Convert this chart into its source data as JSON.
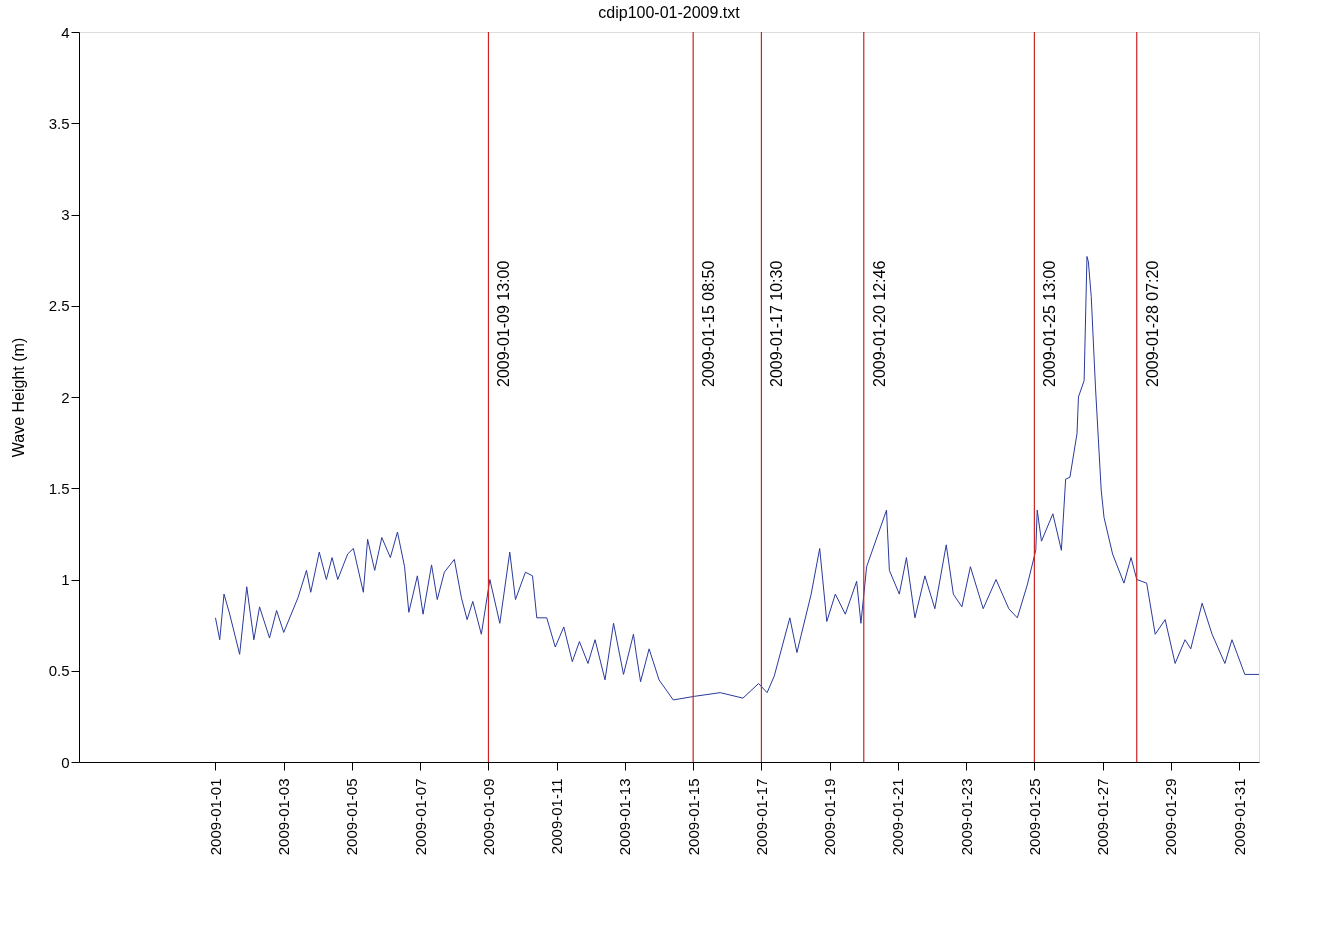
{
  "chart_data": {
    "type": "line",
    "title": "cdip100-01-2009.txt",
    "ylabel": "Wave Height (m)",
    "xlim": [
      "2008-12-28",
      "2009-01-31T14:00"
    ],
    "xticks": [
      "2009-01-01",
      "2009-01-03",
      "2009-01-05",
      "2009-01-07",
      "2009-01-09",
      "2009-01-11",
      "2009-01-13",
      "2009-01-15",
      "2009-01-17",
      "2009-01-19",
      "2009-01-21",
      "2009-01-23",
      "2009-01-25",
      "2009-01-27",
      "2009-01-29",
      "2009-01-31"
    ],
    "ylim": [
      0,
      4
    ],
    "yticks": [
      0,
      0.5,
      1,
      1.5,
      2,
      2.5,
      3,
      3.5,
      4
    ],
    "grid": false,
    "line_style": "solid",
    "marker": "none",
    "x": [
      "2009-01-01T00:00",
      "2009-01-01T03:00",
      "2009-01-01T06:00",
      "2009-01-01T10:00",
      "2009-01-01T17:00",
      "2009-01-01T22:00",
      "2009-01-02T03:00",
      "2009-01-02T07:00",
      "2009-01-02T14:00",
      "2009-01-02T19:00",
      "2009-01-03T00:00",
      "2009-01-03T10:00",
      "2009-01-03T16:00",
      "2009-01-03T19:00",
      "2009-01-04T01:00",
      "2009-01-04T06:00",
      "2009-01-04T10:00",
      "2009-01-04T14:00",
      "2009-01-04T21:00",
      "2009-01-05T01:00",
      "2009-01-05T08:00",
      "2009-01-05T11:00",
      "2009-01-05T16:00",
      "2009-01-05T21:00",
      "2009-01-06T03:00",
      "2009-01-06T08:00",
      "2009-01-06T13:00",
      "2009-01-06T16:00",
      "2009-01-06T22:00",
      "2009-01-07T02:00",
      "2009-01-07T08:00",
      "2009-01-07T12:00",
      "2009-01-07T17:00",
      "2009-01-08T00:00",
      "2009-01-08T05:00",
      "2009-01-08T09:00",
      "2009-01-08T13:00",
      "2009-01-08T19:00",
      "2009-01-09T01:00",
      "2009-01-09T08:00",
      "2009-01-09T15:00",
      "2009-01-09T19:00",
      "2009-01-10T02:00",
      "2009-01-10T07:00",
      "2009-01-10T10:00",
      "2009-01-10T17:00",
      "2009-01-10T23:00",
      "2009-01-11T05:00",
      "2009-01-11T11:00",
      "2009-01-11T16:00",
      "2009-01-11T22:00",
      "2009-01-12T03:00",
      "2009-01-12T10:00",
      "2009-01-12T16:00",
      "2009-01-12T23:00",
      "2009-01-13T06:00",
      "2009-01-13T08:00",
      "2009-01-13T11:00",
      "2009-01-13T17:00",
      "2009-01-14T00:00",
      "2009-01-14T10:00",
      "2009-01-15T01:00",
      "2009-01-15T19:00",
      "2009-01-16T11:00",
      "2009-01-16T22:00",
      "2009-01-17T04:00",
      "2009-01-17T09:00",
      "2009-01-17T20:00",
      "2009-01-18T01:00",
      "2009-01-18T11:00",
      "2009-01-18T17:00",
      "2009-01-18T22:00",
      "2009-01-19T04:00",
      "2009-01-19T11:00",
      "2009-01-19T19:00",
      "2009-01-19T22:00",
      "2009-01-20T02:00",
      "2009-01-20T16:00",
      "2009-01-20T18:00",
      "2009-01-21T01:00",
      "2009-01-21T06:00",
      "2009-01-21T12:00",
      "2009-01-21T19:00",
      "2009-01-22T02:00",
      "2009-01-22T10:00",
      "2009-01-22T15:00",
      "2009-01-22T21:00",
      "2009-01-23T03:00",
      "2009-01-23T12:00",
      "2009-01-23T21:00",
      "2009-01-24T06:00",
      "2009-01-24T12:00",
      "2009-01-24T19:00",
      "2009-01-25T01:00",
      "2009-01-25T02:00",
      "2009-01-25T05:00",
      "2009-01-25T13:00",
      "2009-01-25T19:00",
      "2009-01-25T22:00",
      "2009-01-26T01:00",
      "2009-01-26T06:00",
      "2009-01-26T07:00",
      "2009-01-26T11:00",
      "2009-01-26T13:00",
      "2009-01-26T14:00",
      "2009-01-26T16:00",
      "2009-01-26T19:00",
      "2009-01-26T23:00",
      "2009-01-27T01:00",
      "2009-01-27T07:00",
      "2009-01-27T15:00",
      "2009-01-27T20:00",
      "2009-01-28T00:00",
      "2009-01-28T07:00",
      "2009-01-28T13:00",
      "2009-01-28T20:00",
      "2009-01-29T03:00",
      "2009-01-29T10:00",
      "2009-01-29T14:00",
      "2009-01-29T22:00",
      "2009-01-30T05:00",
      "2009-01-30T14:00",
      "2009-01-30T19:00",
      "2009-01-31T04:00",
      "2009-01-31T14:00"
    ],
    "series": [
      {
        "color": "#2a3a9c",
        "values": [
          0.79,
          0.67,
          0.92,
          0.81,
          0.59,
          0.96,
          0.67,
          0.85,
          0.68,
          0.83,
          0.71,
          0.9,
          1.05,
          0.93,
          1.15,
          1.0,
          1.12,
          1.0,
          1.14,
          1.17,
          0.93,
          1.22,
          1.05,
          1.23,
          1.12,
          1.26,
          1.07,
          0.82,
          1.02,
          0.81,
          1.08,
          0.89,
          1.04,
          1.11,
          0.9,
          0.78,
          0.88,
          0.7,
          1.0,
          0.76,
          1.15,
          0.89,
          1.04,
          1.02,
          0.79,
          0.79,
          0.63,
          0.74,
          0.55,
          0.66,
          0.54,
          0.67,
          0.45,
          0.76,
          0.48,
          0.7,
          0.59,
          0.44,
          0.62,
          0.45,
          0.34,
          0.36,
          0.38,
          0.35,
          0.43,
          0.38,
          0.47,
          0.79,
          0.6,
          0.92,
          1.17,
          0.77,
          0.92,
          0.81,
          0.99,
          0.76,
          1.07,
          1.38,
          1.05,
          0.92,
          1.12,
          0.79,
          1.02,
          0.84,
          1.19,
          0.92,
          0.85,
          1.07,
          0.84,
          1.0,
          0.84,
          0.79,
          0.97,
          1.16,
          1.38,
          1.21,
          1.36,
          1.16,
          1.55,
          1.56,
          1.8,
          2.0,
          2.09,
          2.77,
          2.74,
          2.55,
          2.05,
          1.49,
          1.34,
          1.14,
          0.98,
          1.12,
          1.0,
          0.98,
          0.7,
          0.78,
          0.54,
          0.67,
          0.62,
          0.87,
          0.7,
          0.54,
          0.67,
          0.48,
          0.48
        ]
      }
    ],
    "ref_lines": [
      {
        "axis": "x",
        "value": "2009-01-09",
        "label": "2009-01-09  13:00",
        "color": "#cc2222"
      },
      {
        "axis": "x",
        "value": "2009-01-15",
        "label": "2009-01-15  08:50",
        "color": "#cc2222"
      },
      {
        "axis": "x",
        "value": "2009-01-17",
        "label": "2009-01-17  10:30",
        "color": "#cc2222"
      },
      {
        "axis": "x",
        "value": "2009-01-20",
        "label": "2009-01-20  12:46",
        "color": "#cc2222"
      },
      {
        "axis": "x",
        "value": "2009-01-25",
        "label": "2009-01-25  13:00",
        "color": "#cc2222"
      },
      {
        "axis": "x",
        "value": "2009-01-28",
        "label": "2009-01-28  07:20",
        "color": "#cc2222"
      }
    ]
  }
}
